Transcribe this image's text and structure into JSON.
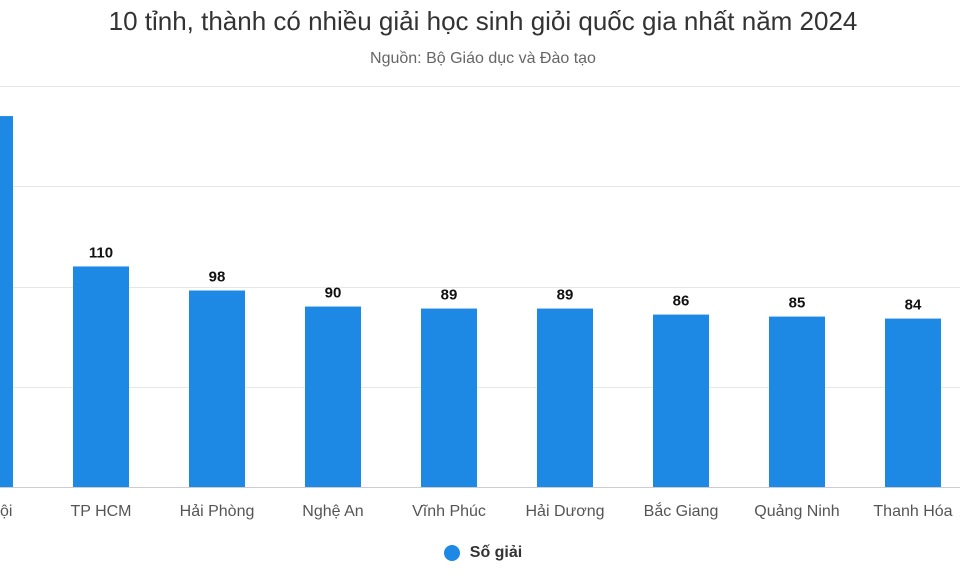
{
  "chart_data": {
    "type": "bar",
    "title": "10 tỉnh, thành có nhiều giải học sinh giỏi quốc gia nhất năm 2024",
    "subtitle": "Nguồn: Bộ Giáo dục và Đào tạo",
    "categories": [
      "Hà Nội",
      "TP HCM",
      "Hải Phòng",
      "Nghệ An",
      "Vĩnh Phúc",
      "Hải Dương",
      "Bắc Giang",
      "Quảng Ninh",
      "Thanh Hóa"
    ],
    "visible_category_labels": [
      "ội",
      "TP HCM",
      "Hải Phòng",
      "Nghệ An",
      "Vĩnh Phúc",
      "Hải Dương",
      "Bắc Giang",
      "Quảng Ninh",
      "Thanh Hóa"
    ],
    "series": [
      {
        "name": "Số giải",
        "values": [
          185,
          110,
          98,
          90,
          89,
          89,
          86,
          85,
          84
        ],
        "value_labels": [
          "",
          "110",
          "98",
          "90",
          "89",
          "89",
          "86",
          "85",
          "84"
        ]
      }
    ],
    "ylim": [
      0,
      200
    ],
    "grid": true,
    "legend_position": "bottom-center",
    "bar_color": "#1e88e5"
  }
}
